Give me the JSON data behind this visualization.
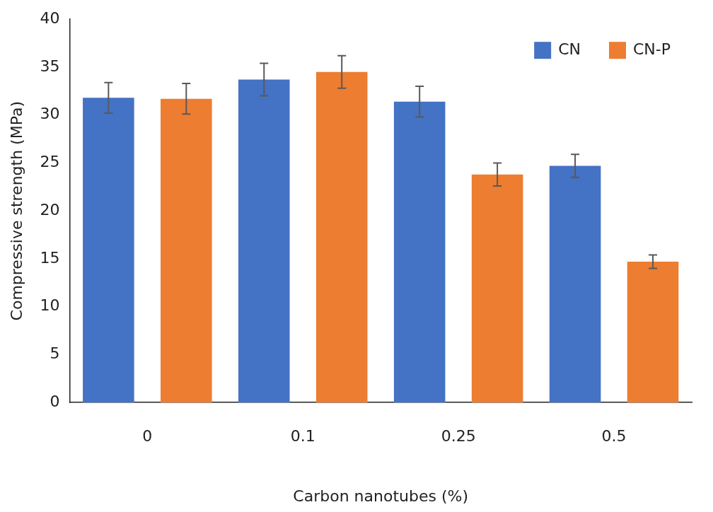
{
  "chart_data": {
    "type": "bar",
    "xlabel": "Carbon nanotubes (%)",
    "ylabel": "Compressive strength (MPa)",
    "categories": [
      "0",
      "0.1",
      "0.25",
      "0.5"
    ],
    "series": [
      {
        "name": "CN",
        "color": "#4472c4",
        "values": [
          31.8,
          33.7,
          31.4,
          24.7
        ],
        "errors": [
          1.6,
          1.7,
          1.6,
          1.2
        ]
      },
      {
        "name": "CN-P",
        "color": "#ed7d31",
        "values": [
          31.7,
          34.5,
          23.8,
          14.7
        ],
        "errors": [
          1.6,
          1.7,
          1.2,
          0.7
        ]
      }
    ],
    "ylim": [
      0,
      40
    ],
    "yticks": [
      0,
      5,
      10,
      15,
      20,
      25,
      30,
      35,
      40
    ],
    "grid": false,
    "legend": "top right"
  }
}
